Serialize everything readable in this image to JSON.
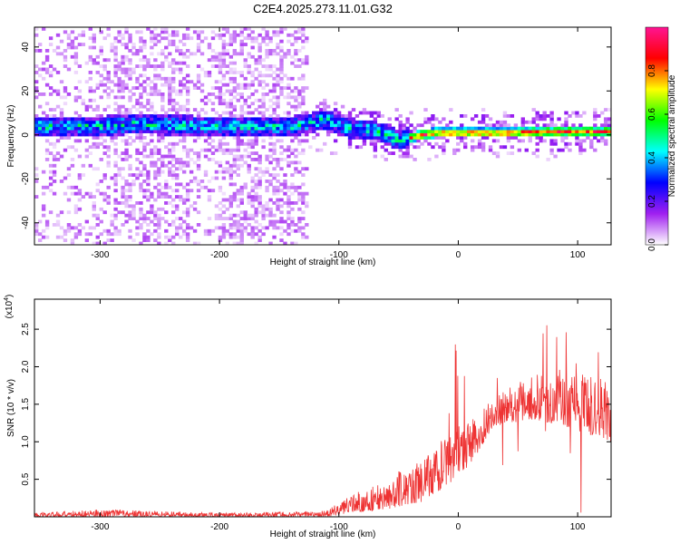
{
  "chart_data": [
    {
      "type": "heatmap",
      "title": "C2E4.2025.273.11.01.G32",
      "xlabel": "Height of straight line (km)",
      "ylabel": "Frequency (Hz)",
      "xlim": [
        -355,
        128
      ],
      "ylim": [
        -50,
        49
      ],
      "xticks": [
        -300,
        -200,
        -100,
        0,
        100
      ],
      "xtick_labels": [
        "-300",
        "-200",
        "-100",
        "0",
        "100"
      ],
      "yticks": [
        40,
        20,
        0,
        -20,
        -40
      ],
      "ytick_labels": [
        "40",
        "20",
        "0",
        "-20",
        "-40"
      ],
      "colorbar": {
        "label": "Normalized spectral amplitude",
        "range": [
          0,
          1
        ],
        "ticks": [
          0.0,
          0.2,
          0.4,
          0.6,
          0.8
        ],
        "tick_labels": [
          "0.0",
          "0.2",
          "0.4",
          "0.6",
          "0.8"
        ],
        "colors": [
          "#ffffff",
          "#a020f0",
          "#0000ff",
          "#00ffff",
          "#00ff00",
          "#ffff00",
          "#ff0000",
          "#ff1493"
        ]
      },
      "signal_track": [
        {
          "x": -350,
          "f": 4
        },
        {
          "x": -300,
          "f": 4
        },
        {
          "x": -270,
          "f": 5
        },
        {
          "x": -210,
          "f": 4
        },
        {
          "x": -140,
          "f": 4
        },
        {
          "x": -110,
          "f": 7
        },
        {
          "x": -90,
          "f": 3
        },
        {
          "x": -70,
          "f": 2
        },
        {
          "x": -50,
          "f": -2
        },
        {
          "x": -40,
          "f": -1
        },
        {
          "x": -20,
          "f": 1
        },
        {
          "x": 0,
          "f": 1
        },
        {
          "x": 40,
          "f": 1
        },
        {
          "x": 80,
          "f": 1.5
        },
        {
          "x": 128,
          "f": 1.5
        }
      ],
      "noise_bands": [
        [
          -355,
          -280
        ],
        [
          -280,
          -225
        ],
        [
          -225,
          -195
        ],
        [
          -195,
          -125
        ]
      ]
    },
    {
      "type": "line",
      "xlabel": "Height of straight line (km)",
      "ylabel": "SNR (10 * v/v)",
      "y_multiplier": "(x10",
      "y_multiplier_exp": "4",
      "y_multiplier_close": ")",
      "xlim": [
        -355,
        128
      ],
      "ylim": [
        0,
        2.9
      ],
      "xticks": [
        -300,
        -200,
        -100,
        0,
        100
      ],
      "xtick_labels": [
        "-300",
        "-200",
        "-100",
        "0",
        "100"
      ],
      "yticks": [
        0.5,
        1.0,
        1.5,
        2.0,
        2.5
      ],
      "ytick_labels": [
        "0.5",
        "1.0",
        "1.5",
        "2.0",
        "2.5"
      ],
      "color": "#ee3333",
      "envelope": [
        {
          "x": -355,
          "lo": 0.0,
          "hi": 0.05
        },
        {
          "x": -300,
          "lo": 0.0,
          "hi": 0.1
        },
        {
          "x": -200,
          "lo": 0.0,
          "hi": 0.05
        },
        {
          "x": -110,
          "lo": 0.0,
          "hi": 0.08
        },
        {
          "x": -90,
          "lo": 0.05,
          "hi": 0.3
        },
        {
          "x": -60,
          "lo": 0.1,
          "hi": 0.5
        },
        {
          "x": -30,
          "lo": 0.2,
          "hi": 0.8
        },
        {
          "x": -10,
          "lo": 0.4,
          "hi": 1.1
        },
        {
          "x": 10,
          "lo": 0.7,
          "hi": 1.3
        },
        {
          "x": 30,
          "lo": 1.2,
          "hi": 1.6
        },
        {
          "x": 60,
          "lo": 1.3,
          "hi": 1.9
        },
        {
          "x": 90,
          "lo": 1.2,
          "hi": 2.0
        },
        {
          "x": 128,
          "lo": 1.0,
          "hi": 1.8
        }
      ]
    }
  ]
}
